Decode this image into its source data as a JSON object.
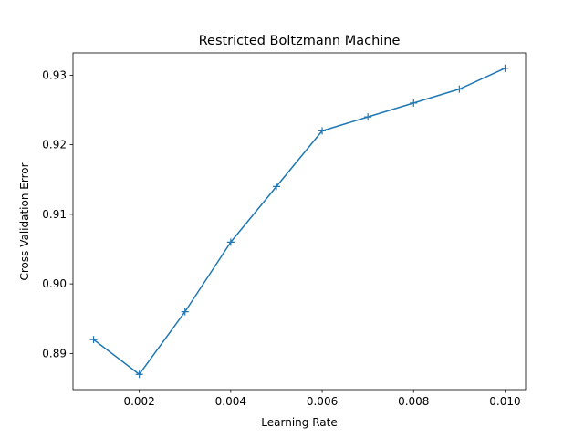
{
  "chart_data": {
    "type": "line",
    "title": "Restricted Boltzmann Machine",
    "xlabel": "Learning Rate",
    "ylabel": "Cross Validation Error",
    "xlim": [
      0.00055,
      0.01045
    ],
    "ylim": [
      0.8848,
      0.9332
    ],
    "xticks": [
      "0.002",
      "0.004",
      "0.006",
      "0.008",
      "0.010"
    ],
    "xtick_values": [
      0.002,
      0.004,
      0.006,
      0.008,
      0.01
    ],
    "yticks": [
      "0.89",
      "0.90",
      "0.91",
      "0.92",
      "0.93"
    ],
    "ytick_values": [
      0.89,
      0.9,
      0.91,
      0.92,
      0.93
    ],
    "grid": false,
    "series": [
      {
        "color": "#1f77b4",
        "marker": "plus",
        "x": [
          0.001,
          0.002,
          0.003,
          0.004,
          0.005,
          0.006,
          0.007,
          0.008,
          0.009,
          0.01
        ],
        "y": [
          0.892,
          0.887,
          0.896,
          0.906,
          0.914,
          0.922,
          0.924,
          0.926,
          0.928,
          0.931
        ]
      }
    ]
  }
}
